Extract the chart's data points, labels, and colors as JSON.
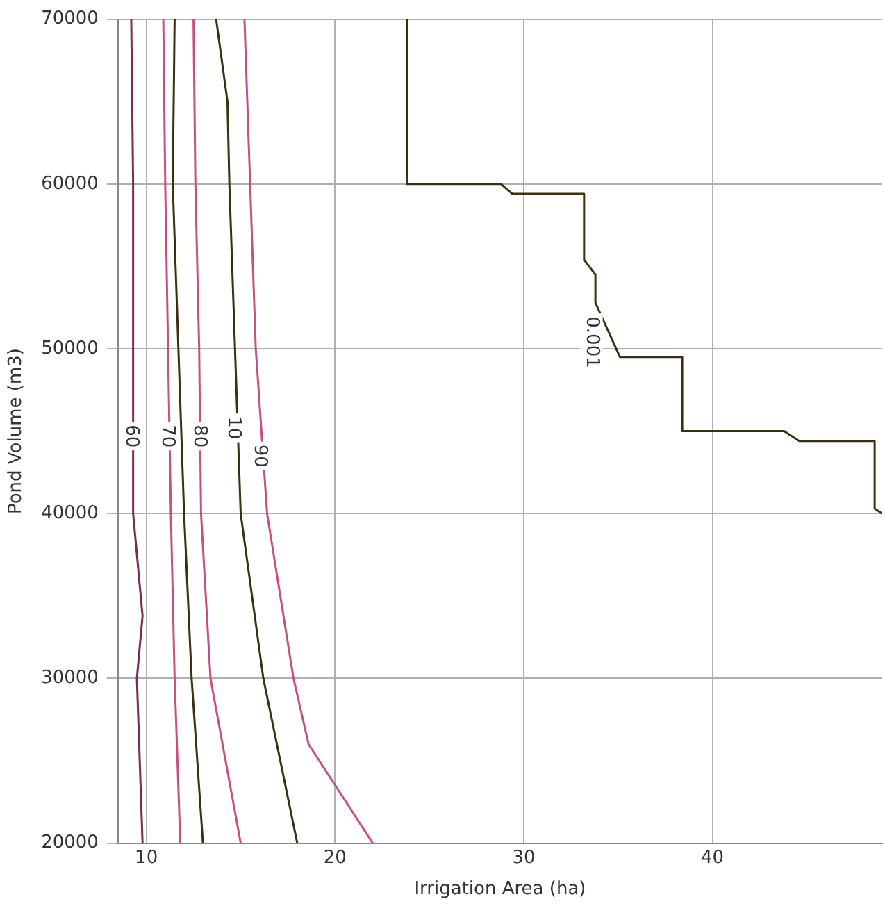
{
  "chart_data": {
    "type": "line",
    "xlabel": "Irrigation Area (ha)",
    "ylabel": "Pond Volume (m3)",
    "xlim": [
      8.5,
      49
    ],
    "xticks": [
      10,
      20,
      30,
      40
    ],
    "ylim": [
      20000,
      70000
    ],
    "yticks": [
      20000,
      30000,
      40000,
      50000,
      60000,
      70000
    ],
    "grid": true,
    "legend": false,
    "marker": "none",
    "line_style": "solid",
    "series": [
      {
        "color": "#7b2a55",
        "x": [
          9.2,
          9.3,
          9.3,
          9.8,
          9.5,
          9.8
        ],
        "values": [
          70000,
          60000,
          40000,
          33800,
          30000,
          20000
        ]
      },
      {
        "color": "#c8507e",
        "x": [
          10.9,
          11.0,
          11.3,
          11.5,
          11.8
        ],
        "values": [
          70000,
          60000,
          40000,
          30000,
          20000
        ]
      },
      {
        "color": "#3c3010",
        "x": [
          11.5,
          11.4,
          11.7,
          12.0,
          12.4,
          13.0
        ],
        "values": [
          70000,
          60000,
          50000,
          40000,
          30000,
          20000
        ]
      },
      {
        "color": "#c8507e",
        "x": [
          12.5,
          12.6,
          12.8,
          12.9,
          13.4,
          15.0
        ],
        "values": [
          70000,
          60000,
          50000,
          40000,
          30000,
          20000
        ]
      },
      {
        "color": "#3c3010",
        "x": [
          13.7,
          14.3,
          14.4,
          14.7,
          15.0,
          16.2,
          18.0
        ],
        "values": [
          70000,
          65000,
          60000,
          50000,
          40000,
          30000,
          20000
        ]
      },
      {
        "color": "#c8507e",
        "x": [
          15.2,
          15.5,
          15.8,
          16.4,
          17.8,
          18.6,
          22.0
        ],
        "values": [
          70000,
          60000,
          50000,
          40000,
          30000,
          26000,
          20000
        ]
      },
      {
        "color": "#3c3010",
        "x": [
          23.8,
          23.8,
          28.8,
          29.4,
          33.2,
          33.2,
          33.8,
          33.8,
          35.1,
          38.4,
          38.4,
          43.8,
          44.6,
          48.6,
          48.6,
          49.0
        ],
        "values": [
          70000,
          60000,
          60000,
          59400,
          59400,
          55400,
          54500,
          52800,
          49500,
          49500,
          45000,
          45000,
          44400,
          44400,
          40300,
          40000
        ]
      }
    ],
    "annotations": [
      {
        "text": "60",
        "x": 9.2,
        "y": 44700
      },
      {
        "text": "70",
        "x": 11.1,
        "y": 44700
      },
      {
        "text": "80",
        "x": 12.8,
        "y": 44700
      },
      {
        "text": "10",
        "x": 14.6,
        "y": 45200
      },
      {
        "text": "90",
        "x": 16.0,
        "y": 43500
      },
      {
        "text": "0.001",
        "x": 33.6,
        "y": 50400
      }
    ]
  }
}
